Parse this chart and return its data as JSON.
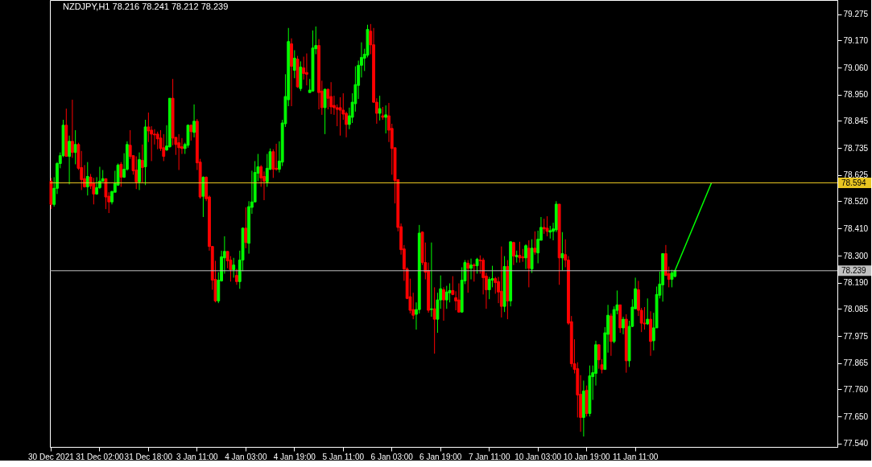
{
  "chart_data": {
    "type": "candlestick",
    "title": "NZDJPY,H1  78.216 78.241 78.212 78.239",
    "categories": [
      "30 Dec 2021",
      null,
      null,
      null,
      null,
      null,
      null,
      null,
      null,
      null,
      null,
      null,
      null,
      null,
      null,
      null,
      "31 Dec 02:00",
      null,
      null,
      null,
      null,
      null,
      null,
      null,
      null,
      null,
      null,
      null,
      null,
      null,
      null,
      null,
      "31 Dec 18:00",
      null,
      null,
      null,
      null,
      null,
      null,
      null,
      null,
      null,
      null,
      null,
      null,
      null,
      null,
      null,
      "3 Jan 11:00",
      null,
      null,
      null,
      null,
      null,
      null,
      null,
      null,
      null,
      null,
      null,
      null,
      null,
      null,
      null,
      "4 Jan 03:00",
      null,
      null,
      null,
      null,
      null,
      null,
      null,
      null,
      null,
      null,
      null,
      null,
      null,
      null,
      null,
      "4 Jan 19:00",
      null,
      null,
      null,
      null,
      null,
      null,
      null,
      null,
      null,
      null,
      null,
      null,
      null,
      null,
      null,
      "5 Jan 11:00",
      null,
      null,
      null,
      null,
      null,
      null,
      null,
      null,
      null,
      null,
      null,
      null,
      null,
      null,
      null,
      "6 Jan 03:00",
      null,
      null,
      null,
      null,
      null,
      null,
      null,
      null,
      null,
      null,
      null,
      null,
      null,
      null,
      null,
      "6 Jan 19:00",
      null,
      null,
      null,
      null,
      null,
      null,
      null,
      null,
      null,
      null,
      null,
      null,
      null,
      null,
      null,
      "7 Jan 11:00",
      null,
      null,
      null,
      null,
      null,
      null,
      null,
      null,
      null,
      null,
      null,
      null,
      null,
      null,
      null,
      "10 Jan 03:00",
      null,
      null,
      null,
      null,
      null,
      null,
      null,
      null,
      null,
      null,
      null,
      null,
      null,
      null,
      null,
      "10 Jan 19:00",
      null,
      null,
      null,
      null,
      null,
      null,
      null,
      null,
      null,
      null,
      null,
      null,
      null,
      null,
      null,
      "11 Jan 11:00",
      null,
      null,
      null,
      null,
      null,
      null,
      null,
      null,
      null,
      null,
      null,
      null,
      null,
      null,
      null,
      null,
      null,
      null,
      null,
      null,
      null,
      null,
      null,
      null,
      null,
      null,
      null,
      null,
      null,
      null,
      null,
      null,
      null,
      null,
      null,
      null,
      null,
      null,
      null,
      null,
      null,
      null,
      null,
      null,
      null,
      null,
      null,
      null,
      null,
      null,
      null,
      null,
      null,
      null,
      null,
      null,
      null,
      null,
      null,
      null,
      null,
      null,
      null,
      null,
      null,
      null
    ],
    "ohlc": [
      [
        78.601,
        78.614,
        78.488,
        78.507
      ],
      [
        78.507,
        78.617,
        78.498,
        78.572
      ],
      [
        78.572,
        78.678,
        78.549,
        78.672
      ],
      [
        78.672,
        78.717,
        78.653,
        78.704
      ],
      [
        78.704,
        78.849,
        78.698,
        78.827
      ],
      [
        78.827,
        78.894,
        78.701,
        78.701
      ],
      [
        78.701,
        78.785,
        78.588,
        78.762
      ],
      [
        78.762,
        78.93,
        78.695,
        78.717
      ],
      [
        78.717,
        78.807,
        78.669,
        78.749
      ],
      [
        78.749,
        78.756,
        78.646,
        78.653
      ],
      [
        78.656,
        78.723,
        78.565,
        78.607
      ],
      [
        78.611,
        78.666,
        78.575,
        78.578
      ],
      [
        78.578,
        78.678,
        78.543,
        78.62
      ],
      [
        78.617,
        78.63,
        78.569,
        78.582
      ],
      [
        78.594,
        78.614,
        78.507,
        78.549
      ],
      [
        78.549,
        78.617,
        78.546,
        78.575
      ],
      [
        78.575,
        78.659,
        78.569,
        78.601
      ],
      [
        78.601,
        78.646,
        78.598,
        78.611
      ],
      [
        78.611,
        78.611,
        78.488,
        78.537
      ],
      [
        78.54,
        78.556,
        78.472,
        78.517
      ],
      [
        78.517,
        78.562,
        78.507,
        78.559
      ],
      [
        78.556,
        78.643,
        78.556,
        78.591
      ],
      [
        78.585,
        78.672,
        78.582,
        78.666
      ],
      [
        78.669,
        78.678,
        78.578,
        78.617
      ],
      [
        78.617,
        78.714,
        78.614,
        78.649
      ],
      [
        78.649,
        78.762,
        78.643,
        78.749
      ],
      [
        78.746,
        78.807,
        78.691,
        78.701
      ],
      [
        78.704,
        78.704,
        78.627,
        78.643
      ],
      [
        78.646,
        78.701,
        78.569,
        78.598
      ],
      [
        78.598,
        78.717,
        78.565,
        78.688
      ],
      [
        78.685,
        78.749,
        78.594,
        78.656
      ],
      [
        78.659,
        78.849,
        78.585,
        78.82
      ],
      [
        78.82,
        78.878,
        78.759,
        78.804
      ],
      [
        78.807,
        78.823,
        78.682,
        78.791
      ],
      [
        78.791,
        78.811,
        78.749,
        78.788
      ],
      [
        78.791,
        78.801,
        78.73,
        78.772
      ],
      [
        78.775,
        78.807,
        78.723,
        78.733
      ],
      [
        78.736,
        78.791,
        78.682,
        78.701
      ],
      [
        78.727,
        78.827,
        78.723,
        78.743
      ],
      [
        78.74,
        78.936,
        78.736,
        78.936
      ],
      [
        78.936,
        79.014,
        78.746,
        78.775
      ],
      [
        78.778,
        78.778,
        78.707,
        78.749
      ],
      [
        78.756,
        78.791,
        78.646,
        78.736
      ],
      [
        78.74,
        78.775,
        78.711,
        78.733
      ],
      [
        78.733,
        78.756,
        78.711,
        78.749
      ],
      [
        78.746,
        78.83,
        78.736,
        78.827
      ],
      [
        78.827,
        78.83,
        78.765,
        78.801
      ],
      [
        78.798,
        78.911,
        78.778,
        78.843
      ],
      [
        78.843,
        78.852,
        78.646,
        78.675
      ],
      [
        78.678,
        78.691,
        78.53,
        78.537
      ],
      [
        78.54,
        78.62,
        78.456,
        78.617
      ],
      [
        78.617,
        78.62,
        78.52,
        78.53
      ],
      [
        78.537,
        78.543,
        78.32,
        78.337
      ],
      [
        78.337,
        78.337,
        78.162,
        78.201
      ],
      [
        78.204,
        78.279,
        78.111,
        78.117
      ],
      [
        78.117,
        78.233,
        78.108,
        78.201
      ],
      [
        78.198,
        78.32,
        78.195,
        78.295
      ],
      [
        78.291,
        78.378,
        78.227,
        78.317
      ],
      [
        78.317,
        78.317,
        78.249,
        78.279
      ],
      [
        78.282,
        78.298,
        78.195,
        78.243
      ],
      [
        78.243,
        78.291,
        78.211,
        78.262
      ],
      [
        78.22,
        78.246,
        78.182,
        78.195
      ],
      [
        78.195,
        78.32,
        78.166,
        78.282
      ],
      [
        78.282,
        78.414,
        78.237,
        78.411
      ],
      [
        78.411,
        78.495,
        78.33,
        78.353
      ],
      [
        78.35,
        78.52,
        78.308,
        78.498
      ],
      [
        78.495,
        78.643,
        78.469,
        78.517
      ],
      [
        78.517,
        78.682,
        78.517,
        78.636
      ],
      [
        78.633,
        78.711,
        78.601,
        78.659
      ],
      [
        78.659,
        78.666,
        78.578,
        78.614
      ],
      [
        78.62,
        78.64,
        78.524,
        78.601
      ],
      [
        78.598,
        78.711,
        78.578,
        78.653
      ],
      [
        78.649,
        78.733,
        78.646,
        78.72
      ],
      [
        78.72,
        78.73,
        78.614,
        78.649
      ],
      [
        78.653,
        78.752,
        78.643,
        78.649
      ],
      [
        78.649,
        78.762,
        78.636,
        78.682
      ],
      [
        78.678,
        78.849,
        78.662,
        78.836
      ],
      [
        78.833,
        79.033,
        78.82,
        78.943
      ],
      [
        78.93,
        79.22,
        78.904,
        79.165
      ],
      [
        79.156,
        79.178,
        78.904,
        79.065
      ],
      [
        79.049,
        79.13,
        79.017,
        79.098
      ],
      [
        79.094,
        79.107,
        78.978,
        78.982
      ],
      [
        78.975,
        79.085,
        78.965,
        79.062
      ],
      [
        79.059,
        79.104,
        79.011,
        79.036
      ],
      [
        79.04,
        79.117,
        78.988,
        79.033
      ],
      [
        78.959,
        79.014,
        78.959,
        78.969
      ],
      [
        78.965,
        79.21,
        78.965,
        79.139
      ],
      [
        79.136,
        79.226,
        79.114,
        79.149
      ],
      [
        79.149,
        79.175,
        78.891,
        78.959
      ],
      [
        78.965,
        79.007,
        78.869,
        78.898
      ],
      [
        78.898,
        78.975,
        78.791,
        78.972
      ],
      [
        78.972,
        78.975,
        78.891,
        78.936
      ],
      [
        78.943,
        79.001,
        78.872,
        78.901
      ],
      [
        78.907,
        78.946,
        78.869,
        78.898
      ],
      [
        78.898,
        78.911,
        78.823,
        78.891
      ],
      [
        78.898,
        78.94,
        78.785,
        78.888
      ],
      [
        78.888,
        78.956,
        78.849,
        78.872
      ],
      [
        78.875,
        78.882,
        78.778,
        78.83
      ],
      [
        78.83,
        78.898,
        78.811,
        78.865
      ],
      [
        78.859,
        78.956,
        78.836,
        78.92
      ],
      [
        78.914,
        79.065,
        78.882,
        78.991
      ],
      [
        78.988,
        79.088,
        78.933,
        79.069
      ],
      [
        79.069,
        79.162,
        79.02,
        79.101
      ],
      [
        79.098,
        79.136,
        79.046,
        79.114
      ],
      [
        79.11,
        79.233,
        79.101,
        79.214
      ],
      [
        79.207,
        79.236,
        79.114,
        79.152
      ],
      [
        79.152,
        79.22,
        78.917,
        78.92
      ],
      [
        78.92,
        78.936,
        78.833,
        78.875
      ],
      [
        78.875,
        78.946,
        78.846,
        78.894
      ],
      [
        78.865,
        78.901,
        78.849,
        78.859
      ],
      [
        78.859,
        78.907,
        78.794,
        78.869
      ],
      [
        78.865,
        78.917,
        78.759,
        78.807
      ],
      [
        78.814,
        78.833,
        78.627,
        78.733
      ],
      [
        78.736,
        78.736,
        78.511,
        78.604
      ],
      [
        78.607,
        78.607,
        78.398,
        78.414
      ],
      [
        78.417,
        78.43,
        78.304,
        78.324
      ],
      [
        78.327,
        78.343,
        78.198,
        78.246
      ],
      [
        78.246,
        78.253,
        78.124,
        78.127
      ],
      [
        78.134,
        78.207,
        78.066,
        78.079
      ],
      [
        78.082,
        78.15,
        78.043,
        78.059
      ],
      [
        78.063,
        78.111,
        78.001,
        78.082
      ],
      [
        78.082,
        78.424,
        78.066,
        78.391
      ],
      [
        78.395,
        78.398,
        78.262,
        78.272
      ],
      [
        78.272,
        78.353,
        78.204,
        78.233
      ],
      [
        78.24,
        78.272,
        78.069,
        78.079
      ],
      [
        78.082,
        78.353,
        78.053,
        78.085
      ],
      [
        78.085,
        78.172,
        77.904,
        78.043
      ],
      [
        78.043,
        78.15,
        77.988,
        78.121
      ],
      [
        78.121,
        78.22,
        78.085,
        78.166
      ],
      [
        78.162,
        78.172,
        78.037,
        78.121
      ],
      [
        78.121,
        78.178,
        78.085,
        78.153
      ],
      [
        78.15,
        78.188,
        78.111,
        78.159
      ],
      [
        78.159,
        78.217,
        78.14,
        78.143
      ],
      [
        78.13,
        78.156,
        78.079,
        78.117
      ],
      [
        78.121,
        78.188,
        78.069,
        78.072
      ],
      [
        78.072,
        78.253,
        78.069,
        78.201
      ],
      [
        78.198,
        78.282,
        78.185,
        78.272
      ],
      [
        78.269,
        78.282,
        78.15,
        78.249
      ],
      [
        78.249,
        78.288,
        78.204,
        78.262
      ],
      [
        78.262,
        78.269,
        78.195,
        78.259
      ],
      [
        78.259,
        78.291,
        78.227,
        78.285
      ],
      [
        78.282,
        78.301,
        78.227,
        78.279
      ],
      [
        78.282,
        78.291,
        78.143,
        78.211
      ],
      [
        78.217,
        78.23,
        78.085,
        78.162
      ],
      [
        78.162,
        78.214,
        78.124,
        78.204
      ],
      [
        78.201,
        78.259,
        78.172,
        78.207
      ],
      [
        78.207,
        78.214,
        78.146,
        78.191
      ],
      [
        78.195,
        78.214,
        78.108,
        78.153
      ],
      [
        78.156,
        78.337,
        78.05,
        78.095
      ],
      [
        78.095,
        78.298,
        78.072,
        78.256
      ],
      [
        78.256,
        78.282,
        78.043,
        78.117
      ],
      [
        78.117,
        78.356,
        78.095,
        78.356
      ],
      [
        78.353,
        78.356,
        78.262,
        78.298
      ],
      [
        78.295,
        78.32,
        78.272,
        78.301
      ],
      [
        78.301,
        78.356,
        78.272,
        78.291
      ],
      [
        78.295,
        78.327,
        78.275,
        78.291
      ],
      [
        78.291,
        78.346,
        78.246,
        78.34
      ],
      [
        78.33,
        78.362,
        78.172,
        78.249
      ],
      [
        78.246,
        78.366,
        78.23,
        78.33
      ],
      [
        78.33,
        78.398,
        78.304,
        78.314
      ],
      [
        78.311,
        78.401,
        78.269,
        78.366
      ],
      [
        78.362,
        78.456,
        78.362,
        78.414
      ],
      [
        78.414,
        78.449,
        78.388,
        78.408
      ],
      [
        78.411,
        78.459,
        78.378,
        78.398
      ],
      [
        78.395,
        78.42,
        78.369,
        78.401
      ],
      [
        78.398,
        78.433,
        78.362,
        78.408
      ],
      [
        78.404,
        78.52,
        78.395,
        78.508
      ],
      [
        78.508,
        78.508,
        78.182,
        78.291
      ],
      [
        78.291,
        78.395,
        78.24,
        78.308
      ],
      [
        78.304,
        78.366,
        78.253,
        78.282
      ],
      [
        78.282,
        78.298,
        78.02,
        78.027
      ],
      [
        78.033,
        78.056,
        77.85,
        77.863
      ],
      [
        77.863,
        77.962,
        77.824,
        77.84
      ],
      [
        77.843,
        77.869,
        77.646,
        77.737
      ],
      [
        77.74,
        77.817,
        77.588,
        77.646
      ],
      [
        77.646,
        77.795,
        77.569,
        77.753
      ],
      [
        77.756,
        77.775,
        77.65,
        77.662
      ],
      [
        77.662,
        77.856,
        77.65,
        77.814
      ],
      [
        77.811,
        77.856,
        77.717,
        77.827
      ],
      [
        77.824,
        77.956,
        77.775,
        77.94
      ],
      [
        77.94,
        77.94,
        77.843,
        77.879
      ],
      [
        77.859,
        77.882,
        77.824,
        77.84
      ],
      [
        77.84,
        78.011,
        77.84,
        77.988
      ],
      [
        77.982,
        78.101,
        77.908,
        78.059
      ],
      [
        78.056,
        78.066,
        77.895,
        77.953
      ],
      [
        77.953,
        78.095,
        77.946,
        78.082
      ],
      [
        78.079,
        78.159,
        78.063,
        78.101
      ],
      [
        78.101,
        78.101,
        77.988,
        78.008
      ],
      [
        78.008,
        78.053,
        77.982,
        78.043
      ],
      [
        78.043,
        78.063,
        77.827,
        77.875
      ],
      [
        77.875,
        78.037,
        77.85,
        78.014
      ],
      [
        78.014,
        78.124,
        78.011,
        78.092
      ],
      [
        78.085,
        78.211,
        78.085,
        78.166
      ],
      [
        78.162,
        78.198,
        78.056,
        78.079
      ],
      [
        78.079,
        78.089,
        77.991,
        78.027
      ],
      [
        78.027,
        78.092,
        78.001,
        78.024
      ],
      [
        78.024,
        78.127,
        78.02,
        78.043
      ],
      [
        78.043,
        78.075,
        77.895,
        77.953
      ],
      [
        77.956,
        78.069,
        77.917,
        78.008
      ],
      [
        78.008,
        78.175,
        78.008,
        78.143
      ],
      [
        78.14,
        78.236,
        78.127,
        78.185
      ],
      [
        78.182,
        78.308,
        78.114,
        78.308
      ],
      [
        78.308,
        78.343,
        78.22,
        78.22
      ],
      [
        78.227,
        78.256,
        78.172,
        78.204
      ],
      [
        78.204,
        78.243,
        78.172,
        78.23
      ],
      [
        78.216,
        78.241,
        78.212,
        78.239
      ],
      null,
      null,
      null,
      null,
      null,
      null,
      null,
      null,
      null,
      null,
      null,
      null,
      null,
      null,
      null,
      null,
      null,
      null,
      null,
      null,
      null,
      null,
      null,
      null,
      null,
      null,
      null,
      null,
      null,
      null,
      null,
      null,
      null,
      null,
      null,
      null,
      null,
      null,
      null,
      null,
      null,
      null,
      null,
      null,
      null,
      null,
      null,
      null,
      null,
      null,
      null,
      null,
      null
    ],
    "series": [
      {
        "type": "line",
        "color": "#00ff00",
        "values": [
          null,
          null,
          null,
          null,
          null,
          null,
          null,
          null,
          null,
          null,
          null,
          null,
          null,
          null,
          null,
          null,
          null,
          null,
          null,
          null,
          null,
          null,
          null,
          null,
          null,
          null,
          null,
          null,
          null,
          null,
          null,
          null,
          null,
          null,
          null,
          null,
          null,
          null,
          null,
          null,
          null,
          null,
          null,
          null,
          null,
          null,
          null,
          null,
          null,
          null,
          null,
          null,
          null,
          null,
          null,
          null,
          null,
          null,
          null,
          null,
          null,
          null,
          null,
          null,
          null,
          null,
          null,
          null,
          null,
          null,
          null,
          null,
          null,
          null,
          null,
          null,
          null,
          null,
          null,
          null,
          null,
          null,
          null,
          null,
          null,
          null,
          null,
          null,
          null,
          null,
          null,
          null,
          null,
          null,
          null,
          null,
          null,
          null,
          null,
          null,
          null,
          null,
          null,
          null,
          null,
          null,
          null,
          null,
          null,
          null,
          null,
          null,
          null,
          null,
          null,
          null,
          null,
          null,
          null,
          null,
          null,
          null,
          null,
          null,
          null,
          null,
          null,
          null,
          null,
          null,
          null,
          null,
          null,
          null,
          null,
          null,
          null,
          null,
          null,
          null,
          null,
          null,
          null,
          null,
          null,
          null,
          null,
          null,
          null,
          null,
          null,
          null,
          null,
          null,
          null,
          null,
          null,
          null,
          null,
          null,
          null,
          null,
          null,
          null,
          null,
          null,
          null,
          null,
          null,
          null,
          null,
          null,
          null,
          null,
          null,
          null,
          null,
          null,
          null,
          null,
          null,
          null,
          null,
          null,
          null,
          null,
          null,
          null,
          null,
          null,
          null,
          null,
          null,
          null,
          null,
          null,
          null,
          null,
          null,
          null,
          null,
          null,
          null,
          null,
          null,
          78.239,
          null,
          null,
          null,
          null,
          null,
          null,
          null,
          null,
          null,
          null,
          null,
          78.594,
          null,
          null,
          null,
          null,
          null,
          null,
          null,
          null,
          null,
          null,
          null,
          null,
          null,
          null,
          null,
          null,
          null,
          null,
          null,
          null,
          null,
          null,
          null,
          null,
          null,
          null,
          null,
          null,
          null,
          null,
          null,
          null,
          null,
          null,
          null,
          null,
          null,
          null,
          null,
          null,
          null
        ]
      }
    ],
    "ylim": [
      77.527,
      79.333
    ],
    "yticks": [
      79.275,
      {
        "value": 79.17,
        "label": "79.170"
      },
      {
        "value": 79.06,
        "label": "79.060"
      },
      {
        "value": 78.95,
        "label": "78.950"
      },
      78.845,
      78.735,
      78.625,
      {
        "value": 78.52,
        "label": "78.520"
      },
      {
        "value": 78.41,
        "label": "78.410"
      },
      {
        "value": 78.3,
        "label": "78.300"
      },
      {
        "value": 78.19,
        "label": "78.190"
      },
      78.085,
      77.975,
      77.865,
      {
        "value": 77.76,
        "label": "77.760"
      },
      {
        "value": 77.65,
        "label": "77.650"
      },
      {
        "value": 77.54,
        "label": "77.540"
      }
    ],
    "ref_lines": [
      {
        "axis": "y",
        "value": 78.594,
        "label": "78.594",
        "color": "#e8c521"
      },
      {
        "axis": "y",
        "value": 78.239,
        "label": "78.239",
        "color": "#c0c0c0"
      }
    ],
    "grid": false
  }
}
